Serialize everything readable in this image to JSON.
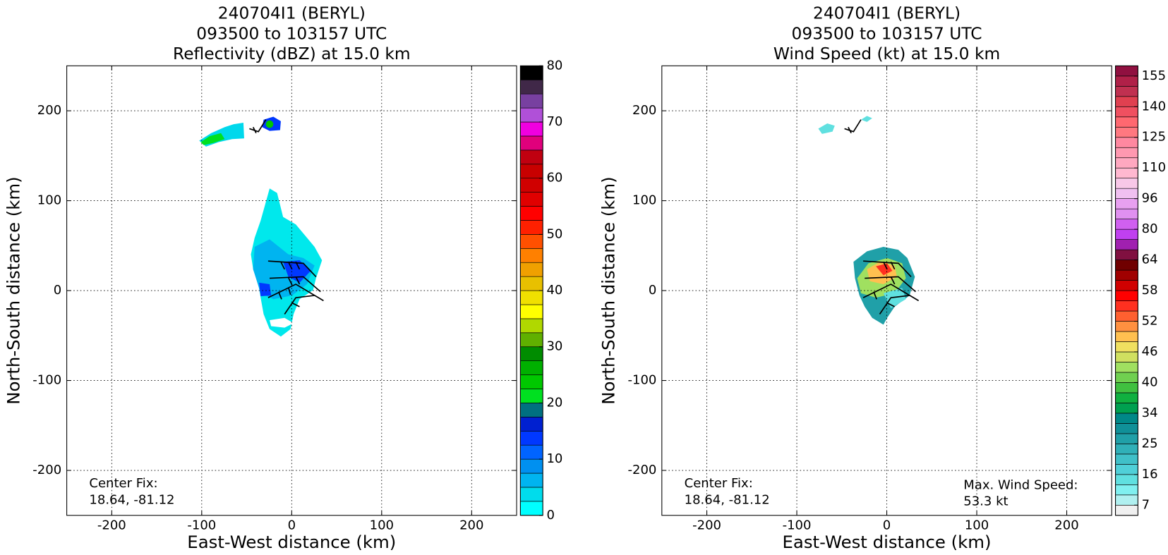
{
  "chart_data": [
    {
      "type": "heatmap",
      "title": [
        "240704I1 (BERYL)",
        "093500 to 103157 UTC",
        "Reflectivity (dBZ) at 15.0 km"
      ],
      "xlabel": "East-West distance (km)",
      "ylabel": "North-South distance (km)",
      "xlim": [
        -250,
        250
      ],
      "ylim": [
        -250,
        250
      ],
      "xticks": [
        -200,
        -100,
        0,
        100,
        200
      ],
      "yticks": [
        -200,
        -100,
        0,
        100,
        200
      ],
      "grid": true,
      "annotations": [
        [
          "Center Fix:",
          "18.64, -81.12"
        ]
      ],
      "colorbar": {
        "bounds": [
          0,
          2.5,
          5,
          7.5,
          10,
          12.5,
          15,
          17.5,
          20,
          22.5,
          25,
          27.5,
          30,
          32.5,
          35,
          37.5,
          40,
          42.5,
          45,
          47.5,
          50,
          52.5,
          55,
          57.5,
          60,
          62.5,
          65,
          67.5,
          70,
          72.5,
          75,
          77.5,
          80
        ],
        "colors": [
          "#00ffff",
          "#00dcec",
          "#00b4f0",
          "#0090f0",
          "#0064ff",
          "#0038ff",
          "#0020d0",
          "#007080",
          "#00e020",
          "#00c800",
          "#00b000",
          "#008c00",
          "#60b000",
          "#b0d800",
          "#ffff00",
          "#f0e000",
          "#e8c000",
          "#f0a000",
          "#ff8000",
          "#ff5000",
          "#ff2000",
          "#ff0000",
          "#e00000",
          "#d00000",
          "#c80000",
          "#c00010",
          "#e0007c",
          "#f000e0",
          "#b050d8",
          "#7840a0",
          "#402848",
          "#000000"
        ],
        "ticks": [
          0,
          10,
          20,
          30,
          40,
          50,
          60,
          70,
          80
        ]
      }
    },
    {
      "type": "heatmap",
      "title": [
        "240704I1 (BERYL)",
        "093500 to 103157 UTC",
        "Wind Speed (kt) at 15.0 km"
      ],
      "xlabel": "East-West distance (km)",
      "ylabel": "North-South distance (km)",
      "xlim": [
        -250,
        250
      ],
      "ylim": [
        -250,
        250
      ],
      "xticks": [
        -200,
        -100,
        0,
        100,
        200
      ],
      "yticks": [
        -200,
        -100,
        0,
        100,
        200
      ],
      "grid": true,
      "annotations": [
        [
          "Center Fix:",
          "18.64, -81.12"
        ],
        [
          "Max. Wind Speed:",
          "53.3 kt"
        ]
      ],
      "colorbar": {
        "bounds": [
          4,
          7,
          10,
          13,
          16,
          19,
          22,
          25,
          28,
          31,
          34,
          36,
          38,
          40,
          42,
          44,
          46,
          48,
          50,
          52,
          54,
          56,
          58,
          60,
          62,
          64,
          69,
          75,
          80,
          85,
          91,
          96,
          101,
          105,
          110,
          115,
          120,
          125,
          130,
          135,
          140,
          145,
          150,
          155,
          160
        ],
        "colors": [
          "#f0f0f0",
          "#b0f0f0",
          "#80f0f0",
          "#60e0e0",
          "#50d0d8",
          "#40c0c8",
          "#30b0b8",
          "#20a0a8",
          "#109098",
          "#008888",
          "#00a050",
          "#10b040",
          "#40c040",
          "#70d050",
          "#a0e060",
          "#d0e060",
          "#f0e060",
          "#ffc050",
          "#ff9040",
          "#ff6030",
          "#ff3020",
          "#ff0000",
          "#d00000",
          "#a00000",
          "#700000",
          "#801040",
          "#a020b0",
          "#c040f0",
          "#d060f0",
          "#e090f0",
          "#e8a0f0",
          "#f0c0f0",
          "#f8c8e8",
          "#ffb8d0",
          "#ffa8c0",
          "#ff98b0",
          "#ff88a0",
          "#ff7880",
          "#ff6870",
          "#f05060",
          "#e04050",
          "#c03050",
          "#b02048",
          "#901040"
        ],
        "ticks": [
          7,
          16,
          25,
          34,
          40,
          46,
          52,
          58,
          64,
          80,
          96,
          110,
          125,
          140,
          155
        ]
      }
    }
  ]
}
